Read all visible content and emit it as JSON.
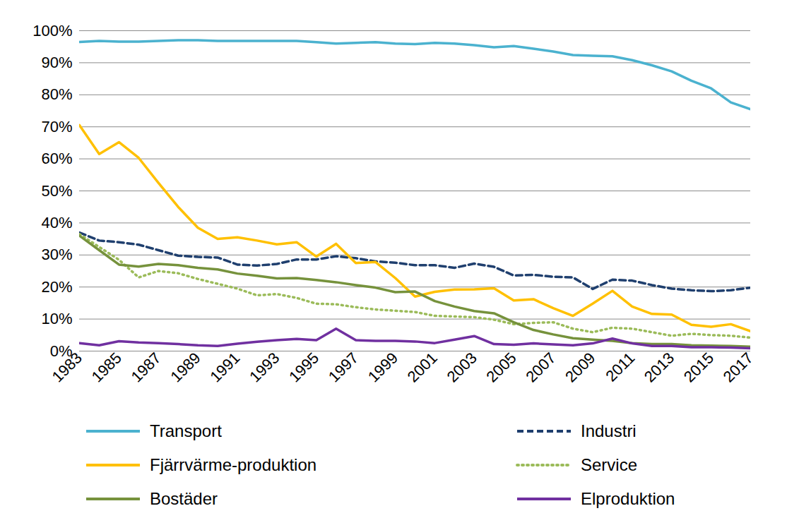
{
  "chart_data": {
    "type": "line",
    "x": [
      1983,
      1984,
      1985,
      1986,
      1987,
      1988,
      1989,
      1990,
      1991,
      1992,
      1993,
      1994,
      1995,
      1996,
      1997,
      1998,
      1999,
      2000,
      2001,
      2002,
      2003,
      2004,
      2005,
      2006,
      2007,
      2008,
      2009,
      2010,
      2011,
      2012,
      2013,
      2014,
      2015,
      2016,
      2017
    ],
    "xlim": [
      1983,
      2017
    ],
    "xticks": [
      1983,
      1985,
      1987,
      1989,
      1991,
      1993,
      1995,
      1997,
      1999,
      2001,
      2003,
      2005,
      2007,
      2009,
      2011,
      2013,
      2015,
      2017
    ],
    "ylim": [
      0,
      100
    ],
    "yticks": [
      {
        "value": 0,
        "label": "0%"
      },
      {
        "value": 10,
        "label": "10%"
      },
      {
        "value": 20,
        "label": "20%"
      },
      {
        "value": 30,
        "label": "30%"
      },
      {
        "value": 40,
        "label": "40%"
      },
      {
        "value": 50,
        "label": "50%"
      },
      {
        "value": 60,
        "label": "60%"
      },
      {
        "value": 70,
        "label": "70%"
      },
      {
        "value": 80,
        "label": "80%"
      },
      {
        "value": 90,
        "label": "90%"
      },
      {
        "value": 100,
        "label": "100%"
      }
    ],
    "grid": true,
    "legend": "bottom",
    "series": [
      {
        "name": "Transport",
        "color": "#4bb2cf",
        "line_style": "solid",
        "values": [
          96.5,
          96.8,
          96.6,
          96.6,
          96.8,
          97,
          97,
          96.8,
          96.8,
          96.8,
          96.8,
          96.8,
          96.4,
          96,
          96.2,
          96.4,
          96,
          95.8,
          96.2,
          96,
          95.5,
          94.8,
          95.2,
          94.4,
          93.5,
          92.4,
          92.2,
          92,
          90.8,
          89.2,
          87.3,
          84.4,
          82,
          77.6,
          75.5
        ]
      },
      {
        "name": "Industri",
        "color": "#1f3f6e",
        "line_style": "dashed",
        "values": [
          37,
          34.5,
          34,
          33.2,
          31.5,
          29.8,
          29.4,
          29.2,
          27,
          26.7,
          27.2,
          28.6,
          28.6,
          29.6,
          29,
          28,
          27.6,
          26.8,
          26.8,
          26,
          27.3,
          26.3,
          23.6,
          23.8,
          23.2,
          23,
          19.4,
          22.3,
          22,
          20.6,
          19.5,
          19,
          18.7,
          19,
          19.8
        ]
      },
      {
        "name": "Fjärrvärme-produktion",
        "color": "#ffc000",
        "line_style": "solid",
        "values": [
          70.5,
          61.5,
          65.2,
          60.3,
          52.5,
          45,
          38.5,
          35,
          35.5,
          34.5,
          33.3,
          34,
          29.5,
          33.5,
          27.5,
          27.8,
          22.8,
          17,
          18.5,
          19.2,
          19.3,
          19.6,
          15.8,
          16.2,
          13.4,
          11,
          14.8,
          18.8,
          13.9,
          11.6,
          11.4,
          8.2,
          7.6,
          8.4,
          6.2
        ]
      },
      {
        "name": "Service",
        "color": "#9bbb59",
        "line_style": "dotted",
        "values": [
          36.5,
          32.5,
          28.5,
          23,
          25,
          24.3,
          22.5,
          21,
          19.5,
          17.4,
          17.8,
          16.6,
          14.8,
          14.6,
          13.7,
          13,
          12.6,
          12.2,
          11,
          10.8,
          10.6,
          9.8,
          8.4,
          8.8,
          9,
          7,
          5.9,
          7.3,
          7,
          5.9,
          4.8,
          5.4,
          5,
          4.8,
          4.2
        ]
      },
      {
        "name": "Bostäder",
        "color": "#76923c",
        "line_style": "solid",
        "values": [
          36,
          31.5,
          27,
          26.4,
          27.2,
          26.8,
          26,
          25.5,
          24.2,
          23.5,
          22.7,
          22.8,
          22.2,
          21.5,
          20.6,
          19.8,
          18.4,
          18.6,
          15.6,
          13.9,
          12.5,
          11.8,
          9,
          6.6,
          5.2,
          4,
          3.6,
          3.2,
          2.5,
          2.2,
          2.2,
          1.8,
          1.7,
          1.6,
          1.4
        ]
      },
      {
        "name": "Elproduktion",
        "color": "#7030a0",
        "line_style": "solid",
        "values": [
          2.5,
          1.8,
          3.1,
          2.7,
          2.5,
          2.2,
          1.8,
          1.6,
          2.3,
          2.9,
          3.4,
          3.8,
          3.4,
          7,
          3.4,
          3.2,
          3.2,
          3,
          2.5,
          3.6,
          4.7,
          2.2,
          2,
          2.4,
          2.1,
          1.8,
          2.4,
          3.9,
          2.4,
          1.6,
          1.6,
          1.2,
          1.2,
          1.1,
          0.9
        ]
      }
    ]
  }
}
